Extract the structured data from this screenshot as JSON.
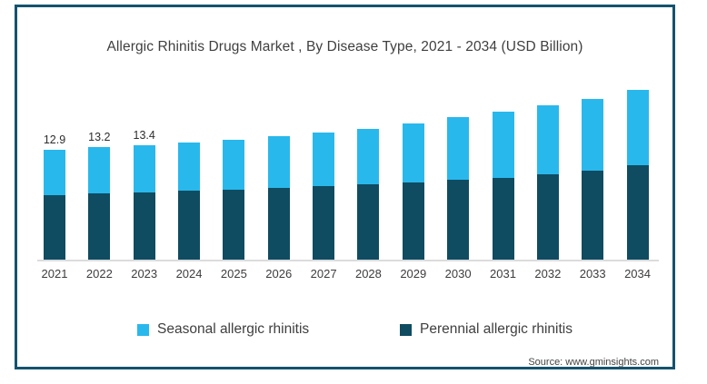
{
  "card": {
    "title": "Allergic Rhinitis Drugs Market , By Disease Type, 2021 - 2034 (USD Billion)",
    "source": "Source: www.gminsights.com"
  },
  "colors": {
    "seasonal": "#29b8ec",
    "perennial": "#0f4c61",
    "card_border": "#14536f",
    "axis_line": "#dcdcdc",
    "text": "#3f3f3f"
  },
  "legend": [
    {
      "label": "Seasonal allergic rhinitis",
      "color": "#29b8ec"
    },
    {
      "label": "Perennial allergic rhinitis",
      "color": "#0f4c61"
    }
  ],
  "chart_data": {
    "type": "bar",
    "stacked": true,
    "title": "Allergic Rhinitis Drugs Market , By Disease Type, 2021 - 2034 (USD Billion)",
    "unit": "USD Billion",
    "categories": [
      "2021",
      "2022",
      "2023",
      "2024",
      "2025",
      "2026",
      "2027",
      "2028",
      "2029",
      "2030",
      "2031",
      "2032",
      "2033",
      "2034"
    ],
    "series": [
      {
        "name": "Seasonal allergic rhinitis",
        "color": "#29b8ec",
        "values": [
          5.3,
          5.4,
          5.5,
          5.7,
          5.9,
          6.1,
          6.3,
          6.6,
          6.9,
          7.3,
          7.8,
          8.1,
          8.4,
          8.8
        ]
      },
      {
        "name": "Perennial allergic rhinitis",
        "color": "#0f4c61",
        "values": [
          7.6,
          7.8,
          7.9,
          8.1,
          8.2,
          8.4,
          8.6,
          8.8,
          9.1,
          9.4,
          9.6,
          10.0,
          10.5,
          11.1
        ]
      }
    ],
    "totals": [
      12.9,
      13.2,
      13.4,
      13.8,
      14.1,
      14.5,
      14.9,
      15.4,
      16.0,
      16.7,
      17.4,
      18.1,
      18.9,
      19.9
    ],
    "data_labels": [
      "12.9",
      "13.2",
      "13.4",
      "",
      "",
      "",
      "",
      "",
      "",
      "",
      "",
      "",
      "",
      ""
    ],
    "ylim": [
      0,
      21
    ],
    "grid": false,
    "legend_position": "bottom",
    "xlabel": "",
    "ylabel": ""
  }
}
